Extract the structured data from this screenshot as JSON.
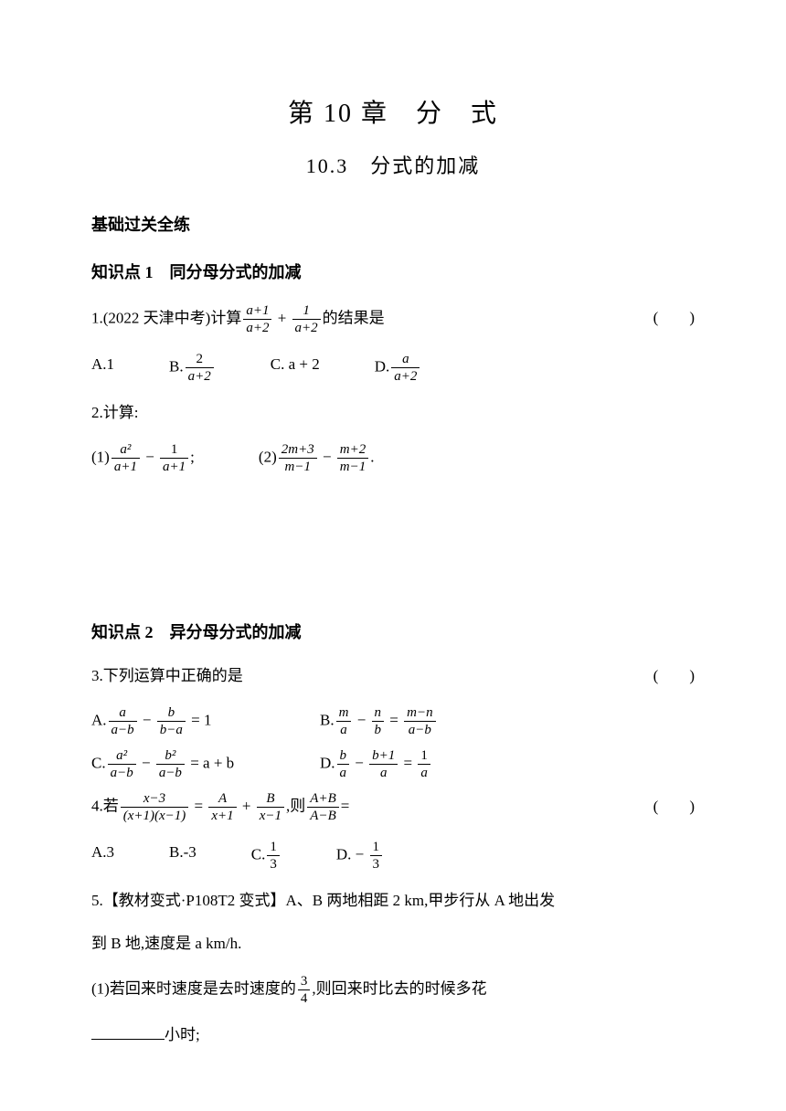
{
  "chapter_title": "第 10 章　分　式",
  "section_title": "10.3　分式的加减",
  "section_heading": "基础过关全练",
  "kp1": {
    "title": "知识点 1　同分母分式的加减",
    "q1": {
      "prefix": "1.(2022 天津中考)计算",
      "suffix": "的结果是",
      "paren": "(　　)",
      "frac1_num": "a+1",
      "frac1_den": "a+2",
      "plus": " + ",
      "frac2_num": "1",
      "frac2_den": "a+2",
      "optA": "A.1",
      "optB_prefix": "B.",
      "optB_num": "2",
      "optB_den": "a+2",
      "optC": "C. a + 2",
      "optD_prefix": "D.",
      "optD_num": "a",
      "optD_den": "a+2"
    },
    "q2": {
      "stem": "2.计算:",
      "sub1_prefix": "(1)",
      "sub1_f1_num": "a²",
      "sub1_f1_den": "a+1",
      "sub1_minus": " − ",
      "sub1_f2_num": "1",
      "sub1_f2_den": "a+1",
      "sub1_semi": ";",
      "sub2_prefix": "(2)",
      "sub2_f1_num": "2m+3",
      "sub2_f1_den": "m−1",
      "sub2_minus": " − ",
      "sub2_f2_num": "m+2",
      "sub2_f2_den": "m−1",
      "sub2_period": "."
    }
  },
  "kp2": {
    "title": "知识点 2　异分母分式的加减",
    "q3": {
      "stem": "3.下列运算中正确的是",
      "paren": "(　　)",
      "A_prefix": "A.",
      "A_f1_num": "a",
      "A_f1_den": "a−b",
      "A_minus": " − ",
      "A_f2_num": "b",
      "A_f2_den": "b−a",
      "A_eq": " = 1",
      "B_prefix": "B.",
      "B_f1_num": "m",
      "B_f1_den": "a",
      "B_minus": " − ",
      "B_f2_num": "n",
      "B_f2_den": "b",
      "B_eq": " = ",
      "B_f3_num": "m−n",
      "B_f3_den": "a−b",
      "C_prefix": "C.",
      "C_f1_num": "a²",
      "C_f1_den": "a−b",
      "C_minus": " − ",
      "C_f2_num": "b²",
      "C_f2_den": "a−b",
      "C_eq": " = a + b",
      "D_prefix": "D.",
      "D_f1_num": "b",
      "D_f1_den": "a",
      "D_minus": " − ",
      "D_f2_num": "b+1",
      "D_f2_den": "a",
      "D_eq": " = ",
      "D_f3_num": "1",
      "D_f3_den": "a"
    },
    "q4": {
      "prefix": "4.若",
      "f1_num": "x−3",
      "f1_den": "(x+1)(x−1)",
      "eq1": " = ",
      "f2_num": "A",
      "f2_den": "x+1",
      "plus": " + ",
      "f3_num": "B",
      "f3_den": "x−1",
      "comma": ",则",
      "f4_num": "A+B",
      "f4_den": "A−B",
      "eq2": "=",
      "paren": "(　　)",
      "optA": "A.3",
      "optB": "B.-3",
      "optC_prefix": "C.",
      "optC_num": "1",
      "optC_den": "3",
      "optD_prefix": "D. − ",
      "optD_num": "1",
      "optD_den": "3"
    },
    "q5": {
      "line1": "5.【教材变式·P108T2 变式】A、B 两地相距 2 km,甲步行从 A 地出发",
      "line2": "到 B 地,速度是 a km/h.",
      "sub1_prefix": "(1)若回来时速度是去时速度的",
      "sub1_num": "3",
      "sub1_den": "4",
      "sub1_suffix": ",则回来时比去的时候多花",
      "sub1_end": "小时;"
    }
  }
}
